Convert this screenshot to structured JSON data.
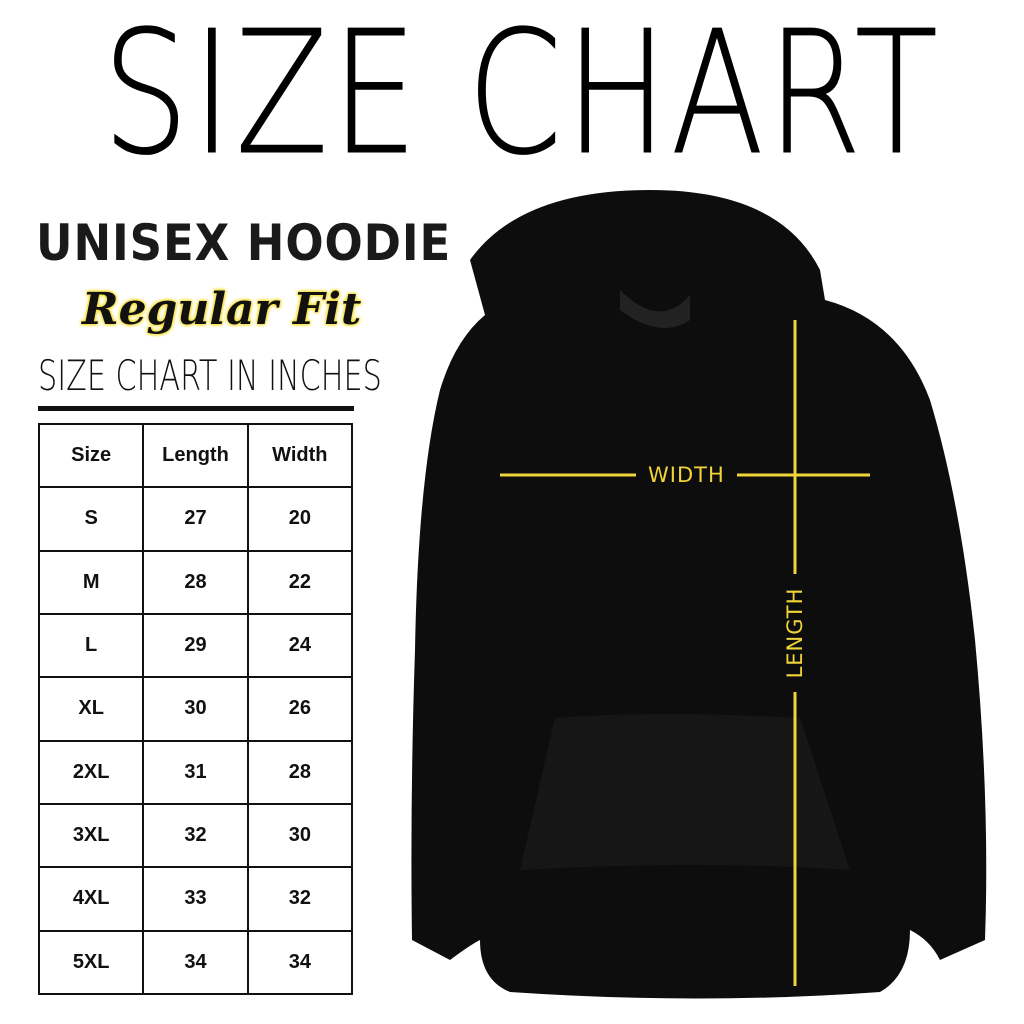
{
  "title": "SIZE CHART",
  "product": "UNISEX HOODIE",
  "fit": "Regular Fit",
  "unit_heading": "SIZE CHART IN INCHES",
  "table": {
    "headers": [
      "Size",
      "Length",
      "Width"
    ],
    "rows": [
      [
        "S",
        "27",
        "20"
      ],
      [
        "M",
        "28",
        "22"
      ],
      [
        "L",
        "29",
        "24"
      ],
      [
        "XL",
        "30",
        "26"
      ],
      [
        "2XL",
        "31",
        "28"
      ],
      [
        "3XL",
        "32",
        "30"
      ],
      [
        "4XL",
        "33",
        "32"
      ],
      [
        "5XL",
        "34",
        "34"
      ]
    ]
  },
  "diagram": {
    "width_label": "WIDTH",
    "length_label": "LENGTH",
    "line_color": "#f0d43a",
    "garment_color": "#0d0d0d"
  }
}
